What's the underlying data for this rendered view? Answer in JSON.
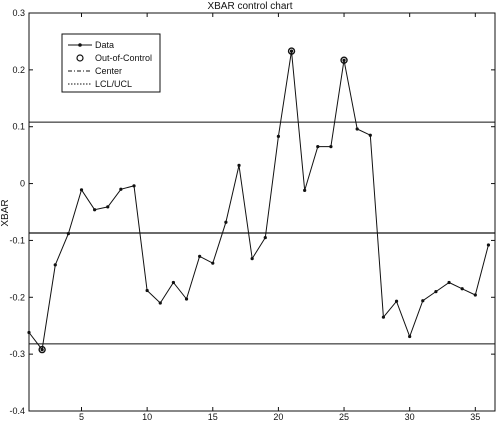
{
  "chart_data": {
    "type": "line",
    "title": "XBAR control chart",
    "xlabel": "",
    "ylabel": "XBAR",
    "xlim": [
      1,
      36.5
    ],
    "ylim": [
      -0.4,
      0.3
    ],
    "xticks": [
      5,
      10,
      15,
      20,
      25,
      30,
      35
    ],
    "yticks": [
      -0.4,
      -0.3,
      -0.2,
      -0.1,
      0,
      0.1,
      0.2,
      0.3
    ],
    "ytick_labels": [
      "-0.4",
      "-0.3",
      "-0.2",
      "-0.1",
      "0",
      "0.1",
      "0.2",
      "0.3"
    ],
    "grid": false,
    "legend_position": "top-left",
    "legend": {
      "data": "Data",
      "out_of_control": "Out-of-Control",
      "center": "Center",
      "limits": "LCL/UCL"
    },
    "colors": {
      "line": "#111111",
      "background": "#ffffff"
    },
    "center": -0.087,
    "ucl": 0.108,
    "lcl": -0.282,
    "series": [
      {
        "name": "Data",
        "x": [
          1,
          2,
          3,
          4,
          5,
          6,
          7,
          8,
          9,
          10,
          11,
          12,
          13,
          14,
          15,
          16,
          17,
          18,
          19,
          20,
          21,
          22,
          23,
          24,
          25,
          26,
          27,
          28,
          29,
          30,
          31,
          32,
          33,
          34,
          35,
          36
        ],
        "values": [
          -0.262,
          -0.292,
          -0.143,
          -0.088,
          -0.011,
          -0.046,
          -0.041,
          -0.01,
          -0.004,
          -0.188,
          -0.21,
          -0.174,
          -0.203,
          -0.128,
          -0.14,
          -0.068,
          0.032,
          -0.132,
          -0.095,
          0.083,
          0.233,
          -0.012,
          0.065,
          0.065,
          0.217,
          0.096,
          0.085,
          -0.235,
          -0.207,
          -0.269,
          -0.206,
          -0.19,
          -0.174,
          -0.185,
          -0.196,
          -0.108
        ]
      }
    ],
    "out_of_control": [
      {
        "x": 2,
        "y": -0.292
      },
      {
        "x": 21,
        "y": 0.233
      },
      {
        "x": 25,
        "y": 0.217
      }
    ]
  }
}
